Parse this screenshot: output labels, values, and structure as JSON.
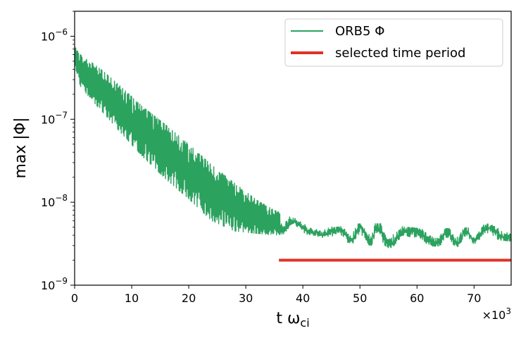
{
  "chart_data": {
    "type": "line",
    "scale": {
      "x": "linear",
      "y": "log"
    },
    "xlim": [
      0,
      76.5
    ],
    "ylim": [
      1e-09,
      2e-06
    ],
    "x_multiplier_label": "×10",
    "x_multiplier_exp": "3",
    "xlabel": "t ω",
    "xlabel_sub": "ci",
    "ylabel": "max |Φ|",
    "x_ticks": [
      {
        "value": 0,
        "label": "0"
      },
      {
        "value": 10,
        "label": "10"
      },
      {
        "value": 20,
        "label": "20"
      },
      {
        "value": 30,
        "label": "30"
      },
      {
        "value": 40,
        "label": "40"
      },
      {
        "value": 50,
        "label": "50"
      },
      {
        "value": 60,
        "label": "60"
      },
      {
        "value": 70,
        "label": "70"
      }
    ],
    "y_ticks": [
      {
        "value": 1e-09,
        "base": "10",
        "exp": "−9"
      },
      {
        "value": 1e-08,
        "base": "10",
        "exp": "−8"
      },
      {
        "value": 1e-07,
        "base": "10",
        "exp": "−7"
      },
      {
        "value": 1e-06,
        "base": "10",
        "exp": "−6"
      }
    ],
    "series": [
      {
        "name": "ORB5 Φ",
        "color": "#2ca25f",
        "style": "oscillating-line",
        "envelope": {
          "x": [
            0,
            1,
            3,
            5,
            8,
            12,
            16,
            20,
            24,
            28,
            32,
            35,
            38,
            42,
            46,
            50,
            54,
            58,
            62,
            66,
            70,
            74,
            76.5
          ],
          "upper": [
            7.5e-07,
            6e-07,
            4.8e-07,
            3.8e-07,
            2.5e-07,
            1.4e-07,
            8.5e-08,
            5e-08,
            2.8e-08,
            1.7e-08,
            1.05e-08,
            8e-09,
            6.5e-09,
            5.8e-09,
            5e-09,
            5.5e-09,
            5.5e-09,
            5e-09,
            4.8e-09,
            4.8e-09,
            5e-09,
            5.8e-09,
            5.2e-09
          ],
          "lower": [
            4.5e-07,
            2.5e-07,
            1.7e-07,
            1.2e-07,
            7e-08,
            3.5e-08,
            1.9e-08,
            1.1e-08,
            6e-09,
            4.5e-09,
            4.2e-09,
            4e-09,
            4.3e-09,
            4e-09,
            3.3e-09,
            3.2e-09,
            2.8e-09,
            2.9e-09,
            3e-09,
            2.8e-09,
            3.2e-09,
            3.5e-09,
            3.4e-09
          ]
        }
      },
      {
        "name": "selected time period",
        "color": "#e03127",
        "style": "thick-line",
        "x": [
          35.8,
          76.5
        ],
        "y": [
          2e-09,
          2e-09
        ]
      }
    ],
    "legend": {
      "placement": "top-right",
      "entries": [
        "ORB5 Φ",
        "selected time period"
      ]
    }
  }
}
